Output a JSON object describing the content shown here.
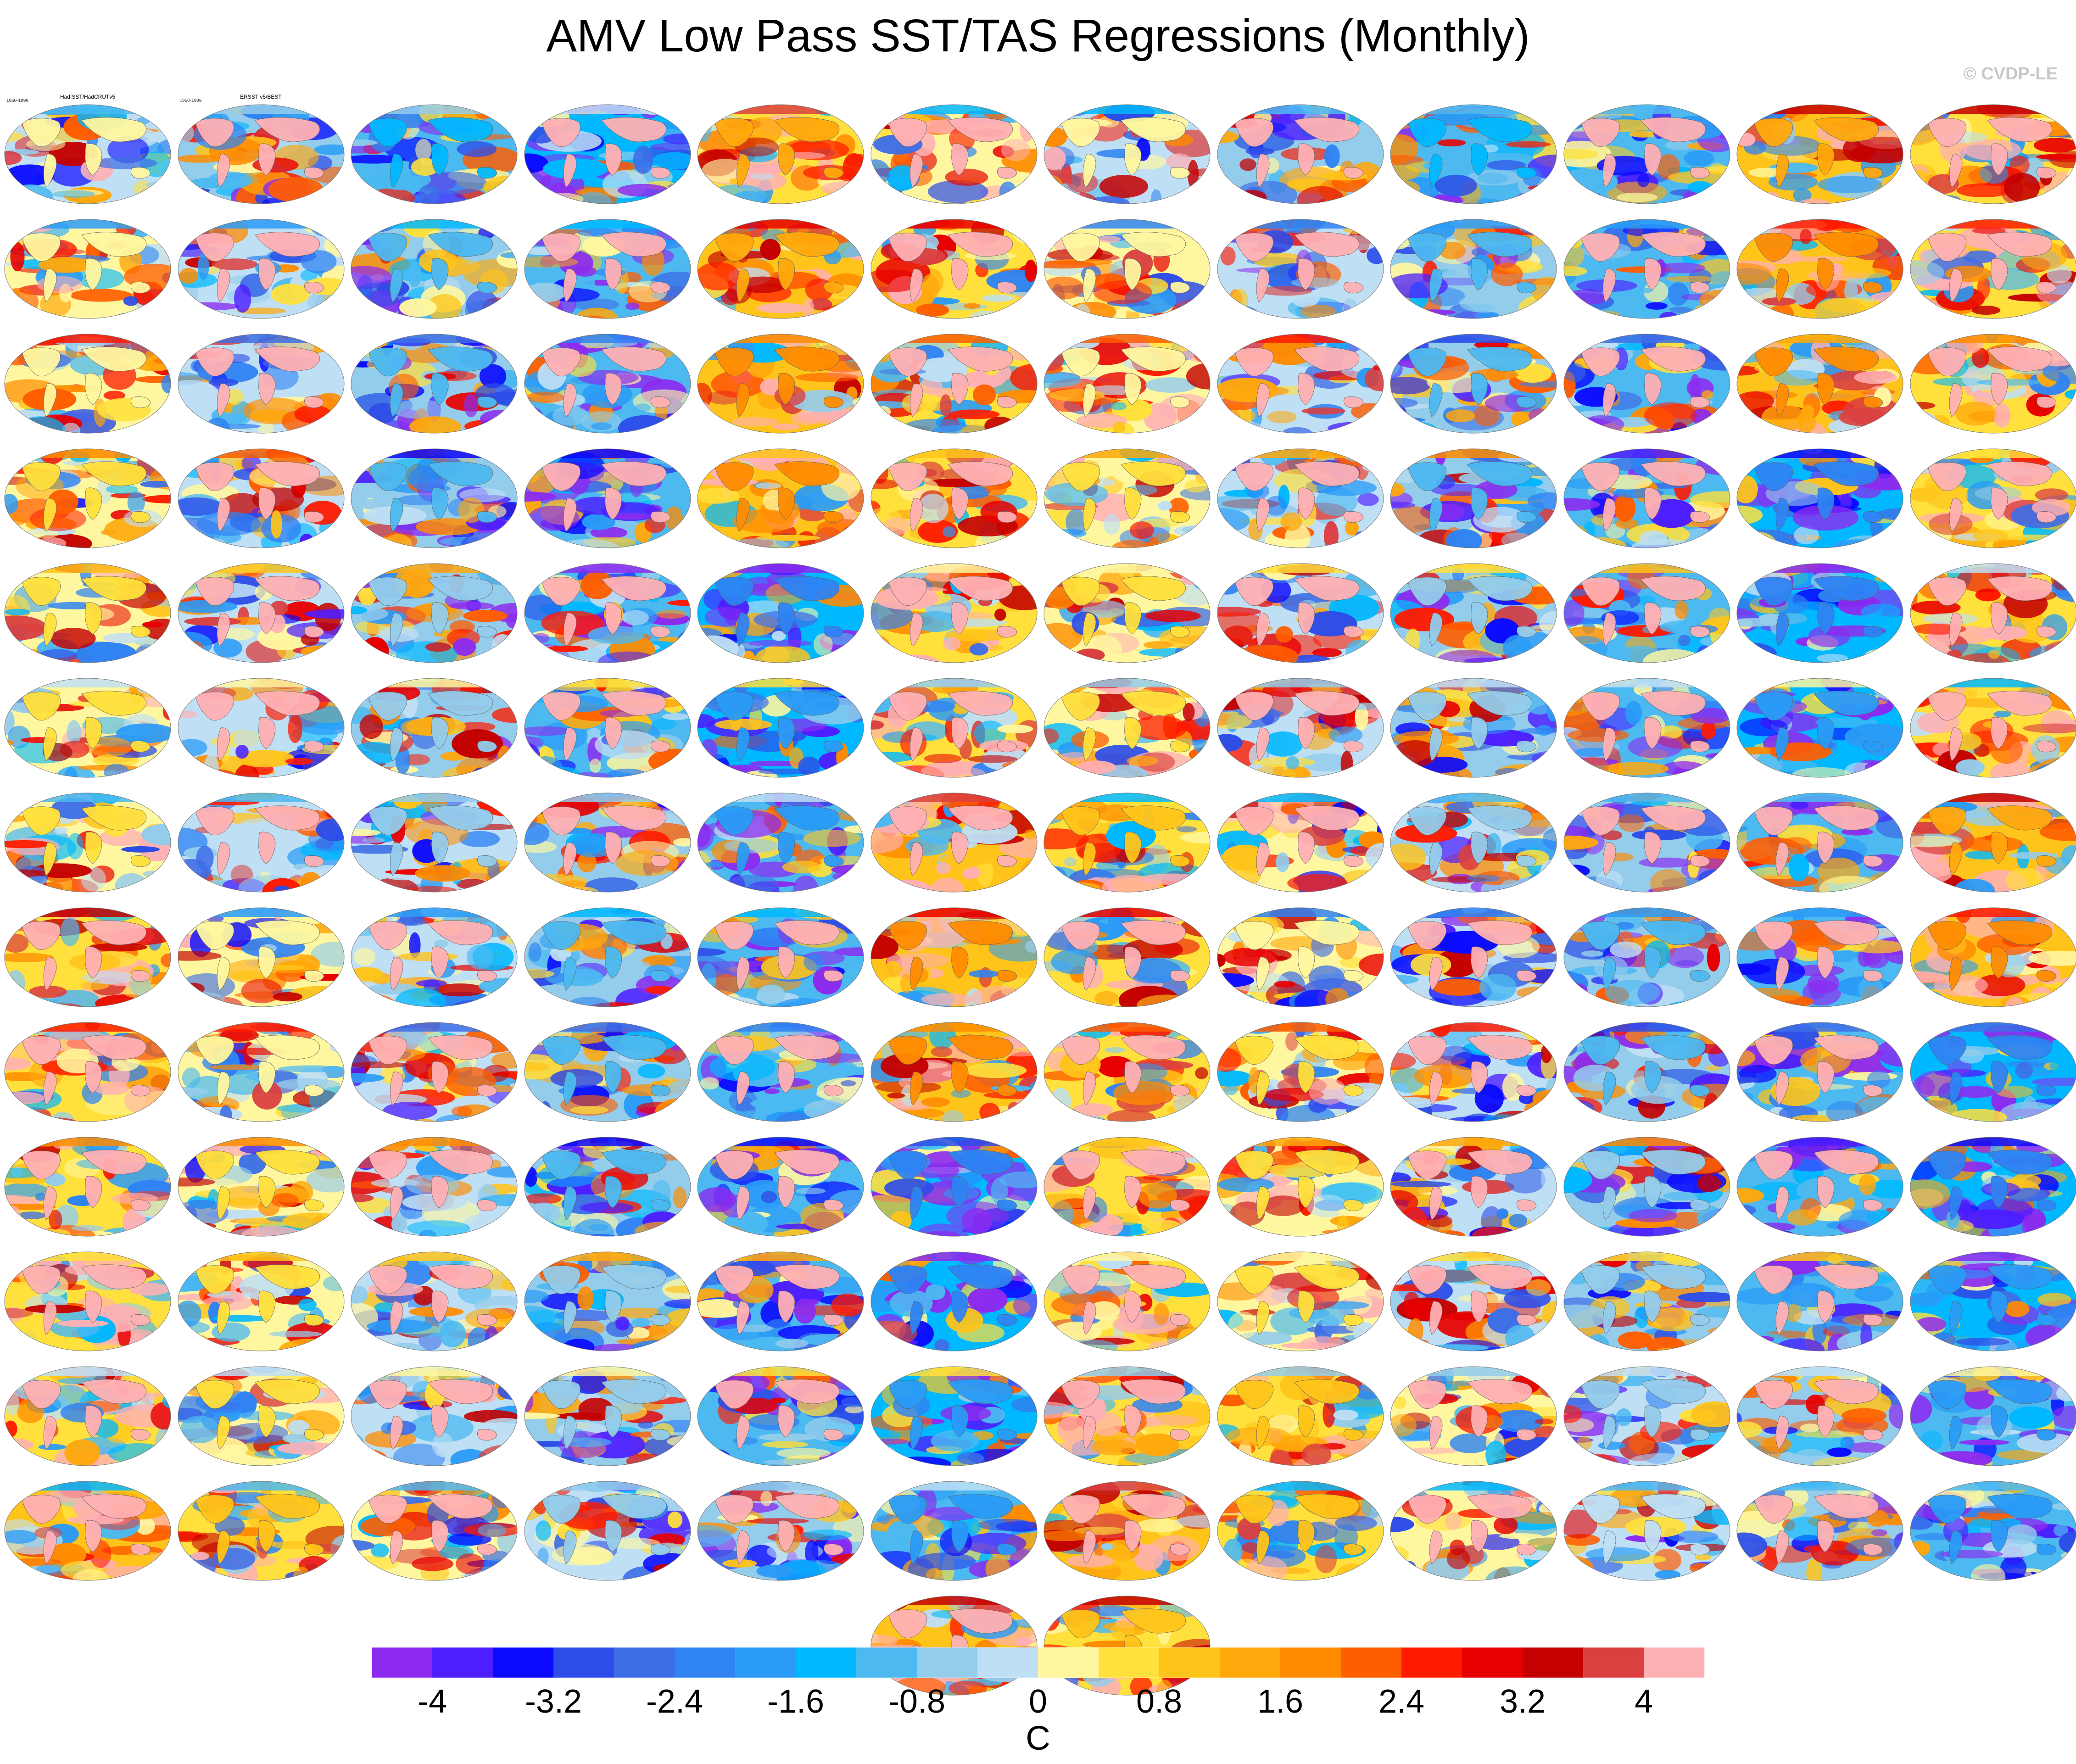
{
  "title": "AMV Low Pass SST/TAS Regressions (Monthly)",
  "watermark": "© CVDP-LE",
  "palette": {
    "land": "#ffb0b4",
    "coast": "#606060",
    "neutral_light": "#bfdff4"
  },
  "chart_data": {
    "type": "heatmap",
    "title": "AMV Low Pass SST/TAS Regressions (Monthly)",
    "period": "1950-1999",
    "colorbar": {
      "unit": "C",
      "tick_values": [
        -4,
        -3.2,
        -2.4,
        -1.6,
        -0.8,
        0,
        0.8,
        1.6,
        2.4,
        3.2,
        4
      ],
      "tick_labels": [
        "-4",
        "-3.2",
        "-2.4",
        "-1.6",
        "-0.8",
        "0",
        "0.8",
        "1.6",
        "2.4",
        "3.2",
        "4"
      ],
      "colors": [
        "#8c2bef",
        "#4d1eff",
        "#0a0aff",
        "#2d4de8",
        "#3e6ee6",
        "#2f83f3",
        "#2a9bf7",
        "#00b8ff",
        "#4cb9f1",
        "#94cceb",
        "#bfdff4",
        "#fff7a0",
        "#ffe03c",
        "#ffc41a",
        "#ffa80c",
        "#ff8c00",
        "#ff5e00",
        "#ff1a00",
        "#e80000",
        "#c40000",
        "#da4040",
        "#ffb0b4"
      ]
    },
    "panels": [
      {
        "title": "HadISST/HadCRUTv5",
        "left": "1950-1999"
      },
      {
        "title": "ERSST v5/BEST",
        "left": "1950-1999"
      },
      {
        "title": ""
      },
      {
        "title": ""
      },
      {
        "title": ""
      },
      {
        "title": ""
      },
      {
        "title": ""
      },
      {
        "title": ""
      },
      {
        "title": ""
      },
      {
        "title": ""
      },
      {
        "title": ""
      },
      {
        "title": ""
      },
      {
        "title": ""
      },
      {
        "title": ""
      },
      {
        "title": ""
      },
      {
        "title": ""
      },
      {
        "title": ""
      },
      {
        "title": ""
      },
      {
        "title": ""
      },
      {
        "title": ""
      },
      {
        "title": ""
      },
      {
        "title": ""
      },
      {
        "title": ""
      },
      {
        "title": ""
      },
      {
        "title": ""
      },
      {
        "title": ""
      },
      {
        "title": ""
      },
      {
        "title": ""
      },
      {
        "title": ""
      },
      {
        "title": ""
      },
      {
        "title": ""
      },
      {
        "title": ""
      },
      {
        "title": ""
      },
      {
        "title": ""
      },
      {
        "title": ""
      },
      {
        "title": ""
      },
      {
        "title": ""
      },
      {
        "title": ""
      },
      {
        "title": ""
      },
      {
        "title": ""
      },
      {
        "title": ""
      },
      {
        "title": ""
      },
      {
        "title": ""
      },
      {
        "title": ""
      },
      {
        "title": ""
      },
      {
        "title": ""
      },
      {
        "title": ""
      },
      {
        "title": ""
      },
      {
        "title": ""
      },
      {
        "title": ""
      },
      {
        "title": ""
      },
      {
        "title": ""
      },
      {
        "title": ""
      },
      {
        "title": ""
      },
      {
        "title": ""
      },
      {
        "title": ""
      },
      {
        "title": ""
      },
      {
        "title": ""
      },
      {
        "title": ""
      },
      {
        "title": ""
      },
      {
        "title": ""
      },
      {
        "title": ""
      },
      {
        "title": ""
      },
      {
        "title": ""
      },
      {
        "title": ""
      },
      {
        "title": ""
      },
      {
        "title": ""
      },
      {
        "title": ""
      },
      {
        "title": ""
      },
      {
        "title": ""
      },
      {
        "title": ""
      },
      {
        "title": ""
      },
      {
        "title": ""
      },
      {
        "title": ""
      },
      {
        "title": ""
      },
      {
        "title": ""
      },
      {
        "title": ""
      },
      {
        "title": ""
      },
      {
        "title": ""
      },
      {
        "title": ""
      },
      {
        "title": ""
      },
      {
        "title": ""
      },
      {
        "title": ""
      },
      {
        "title": ""
      },
      {
        "title": ""
      },
      {
        "title": ""
      },
      {
        "title": ""
      },
      {
        "title": ""
      },
      {
        "title": ""
      },
      {
        "title": ""
      },
      {
        "title": ""
      },
      {
        "title": ""
      },
      {
        "title": ""
      },
      {
        "title": ""
      },
      {
        "title": ""
      },
      {
        "title": ""
      },
      {
        "title": ""
      },
      {
        "title": ""
      },
      {
        "title": ""
      },
      {
        "title": ""
      },
      {
        "title": ""
      },
      {
        "title": ""
      },
      {
        "title": ""
      },
      {
        "title": ""
      },
      {
        "title": ""
      },
      {
        "title": ""
      },
      {
        "title": ""
      },
      {
        "title": ""
      },
      {
        "title": ""
      },
      {
        "title": ""
      },
      {
        "title": ""
      },
      {
        "title": ""
      },
      {
        "title": ""
      },
      {
        "title": ""
      },
      {
        "title": ""
      },
      {
        "title": ""
      },
      {
        "title": ""
      },
      {
        "title": ""
      },
      {
        "title": ""
      },
      {
        "title": ""
      },
      {
        "title": ""
      },
      {
        "title": ""
      },
      {
        "title": ""
      },
      {
        "title": ""
      },
      {
        "title": ""
      },
      {
        "title": ""
      },
      {
        "title": ""
      },
      {
        "title": ""
      },
      {
        "title": ""
      },
      {
        "title": ""
      },
      {
        "title": ""
      },
      {
        "title": ""
      },
      {
        "title": ""
      },
      {
        "title": ""
      },
      {
        "title": ""
      },
      {
        "title": ""
      },
      {
        "title": ""
      },
      {
        "title": ""
      },
      {
        "title": ""
      },
      {
        "title": ""
      },
      {
        "title": ""
      },
      {
        "title": ""
      },
      {
        "title": ""
      },
      {
        "title": ""
      },
      {
        "title": ""
      },
      {
        "title": ""
      },
      {
        "title": ""
      },
      {
        "title": ""
      },
      {
        "title": ""
      },
      {
        "title": ""
      },
      {
        "title": ""
      },
      {
        "title": ""
      },
      {
        "title": ""
      },
      {
        "title": ""
      },
      {
        "title": ""
      },
      {
        "title": ""
      },
      {
        "title": ""
      },
      {
        "title": ""
      }
    ]
  }
}
